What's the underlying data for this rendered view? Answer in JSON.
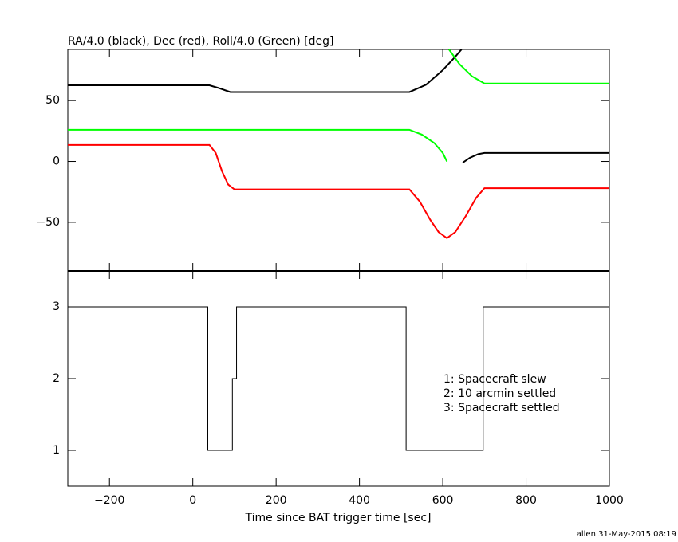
{
  "chart_data": [
    {
      "type": "line",
      "title": "RA/4.0 (black), Dec (red), Roll/4.0 (Green) [deg]",
      "xlim": [
        -300,
        1000
      ],
      "xticks": [
        -200,
        0,
        200,
        400,
        600,
        800,
        1000
      ],
      "ylim": [
        -90,
        92
      ],
      "yticks": [
        {
          "value": -50,
          "label": "−50"
        },
        0,
        50
      ],
      "series": [
        {
          "color": "#000000",
          "x": [
            -300,
            40,
            60,
            90,
            100,
            300,
            520,
            560,
            600,
            630,
            645,
            646,
            648,
            665,
            685,
            700,
            1000
          ],
          "values": [
            62.5,
            62.5,
            60.5,
            57,
            57,
            57,
            57,
            63,
            75,
            86,
            92,
            null,
            -1,
            3,
            6,
            7,
            7
          ]
        },
        {
          "color": "#00ff00",
          "x": [
            -300,
            520,
            550,
            580,
            600,
            610,
            611,
            615,
            640,
            670,
            700,
            1000
          ],
          "values": [
            26,
            26,
            22,
            15,
            7,
            0,
            null,
            92,
            80,
            70,
            64,
            64
          ]
        },
        {
          "color": "#ff0000",
          "x": [
            -300,
            40,
            55,
            70,
            85,
            100,
            520,
            545,
            570,
            590,
            610,
            630,
            655,
            680,
            700,
            1000
          ],
          "values": [
            13.5,
            13.5,
            7,
            -8,
            -19,
            -23,
            -23,
            -33,
            -48,
            -58,
            -63,
            -58,
            -45,
            -30,
            -22,
            -22
          ]
        }
      ]
    },
    {
      "type": "step",
      "x_label": "Time since BAT trigger time [sec]",
      "xlim": [
        -300,
        1000
      ],
      "xticks": [
        {
          "value": -200,
          "label": "−200"
        },
        0,
        200,
        400,
        600,
        800,
        1000
      ],
      "ylim": [
        0.5,
        3.5
      ],
      "yticks": [
        1,
        2,
        3
      ],
      "series": [
        {
          "color": "#000000",
          "x": [
            -300,
            36,
            95,
            105,
            512,
            697,
            1000
          ],
          "values": [
            3,
            1,
            2,
            3,
            1,
            3,
            3
          ]
        }
      ],
      "annotations": [
        "1: Spacecraft slew",
        "2: 10 arcmin settled",
        "3: Spacecraft settled"
      ]
    },
    {
      "type": "footer",
      "text": "allen 31-May-2015 08:19"
    }
  ]
}
